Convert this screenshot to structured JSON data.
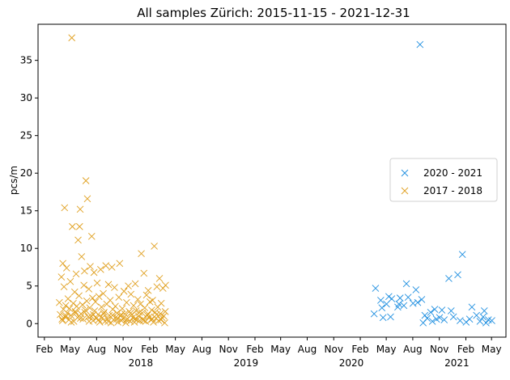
{
  "chart_data": {
    "type": "scatter",
    "title": "All samples Zürich: 2015-11-15 - 2021-12-31",
    "xlabel": "",
    "ylabel": "pcs/m",
    "ylim": [
      -1.8,
      39.8
    ],
    "xlim": [
      "2017-01-10",
      "2021-06-20"
    ],
    "grid": false,
    "legend_position": "center-right",
    "x_ticks": [
      {
        "date": "2017-02-01",
        "label": "Feb"
      },
      {
        "date": "2017-05-01",
        "label": "May"
      },
      {
        "date": "2017-08-01",
        "label": "Aug"
      },
      {
        "date": "2017-11-01",
        "label": "Nov"
      },
      {
        "date": "2018-02-01",
        "label": "Feb"
      },
      {
        "date": "2018-05-01",
        "label": "May"
      },
      {
        "date": "2018-08-01",
        "label": "Aug"
      },
      {
        "date": "2018-11-01",
        "label": "Nov"
      },
      {
        "date": "2019-02-01",
        "label": "Feb"
      },
      {
        "date": "2019-05-01",
        "label": "May"
      },
      {
        "date": "2019-08-01",
        "label": "Aug"
      },
      {
        "date": "2019-11-01",
        "label": "Nov"
      },
      {
        "date": "2020-02-01",
        "label": "Feb"
      },
      {
        "date": "2020-05-01",
        "label": "May"
      },
      {
        "date": "2020-08-01",
        "label": "Aug"
      },
      {
        "date": "2020-11-01",
        "label": "Nov"
      },
      {
        "date": "2021-02-01",
        "label": "Feb"
      },
      {
        "date": "2021-05-01",
        "label": "May"
      }
    ],
    "x_year_labels": [
      {
        "date": "2018-01-01",
        "label": "2018"
      },
      {
        "date": "2019-01-01",
        "label": "2019"
      },
      {
        "date": "2020-01-01",
        "label": "2020"
      },
      {
        "date": "2021-01-01",
        "label": "2021"
      }
    ],
    "y_ticks": [
      0,
      5,
      10,
      15,
      20,
      25,
      30,
      35
    ],
    "series": [
      {
        "name": "2020 - 2021",
        "color": "#1f8fe0",
        "marker": "x",
        "points": [
          {
            "x": "2020-03-20",
            "y": 1.3
          },
          {
            "x": "2020-03-25",
            "y": 4.7
          },
          {
            "x": "2020-04-12",
            "y": 3.1
          },
          {
            "x": "2020-04-16",
            "y": 2.1
          },
          {
            "x": "2020-04-20",
            "y": 0.8
          },
          {
            "x": "2020-05-02",
            "y": 2.6
          },
          {
            "x": "2020-05-10",
            "y": 3.6
          },
          {
            "x": "2020-05-16",
            "y": 0.9
          },
          {
            "x": "2020-05-20",
            "y": 3.3
          },
          {
            "x": "2020-06-10",
            "y": 2.2
          },
          {
            "x": "2020-06-14",
            "y": 2.6
          },
          {
            "x": "2020-06-18",
            "y": 3.4
          },
          {
            "x": "2020-07-01",
            "y": 2.4
          },
          {
            "x": "2020-07-10",
            "y": 5.3
          },
          {
            "x": "2020-07-16",
            "y": 3.5
          },
          {
            "x": "2020-08-02",
            "y": 2.7
          },
          {
            "x": "2020-08-12",
            "y": 4.5
          },
          {
            "x": "2020-08-18",
            "y": 2.8
          },
          {
            "x": "2020-08-26",
            "y": 37.1
          },
          {
            "x": "2020-09-01",
            "y": 3.2
          },
          {
            "x": "2020-09-06",
            "y": 0.1
          },
          {
            "x": "2020-09-12",
            "y": 1.1
          },
          {
            "x": "2020-09-20",
            "y": 0.7
          },
          {
            "x": "2020-10-02",
            "y": 1.5
          },
          {
            "x": "2020-10-08",
            "y": 0.3
          },
          {
            "x": "2020-10-16",
            "y": 1.9
          },
          {
            "x": "2020-10-22",
            "y": 0.6
          },
          {
            "x": "2020-11-02",
            "y": 0.8
          },
          {
            "x": "2020-11-10",
            "y": 1.8
          },
          {
            "x": "2020-11-18",
            "y": 0.5
          },
          {
            "x": "2020-12-04",
            "y": 6.0
          },
          {
            "x": "2020-12-12",
            "y": 1.7
          },
          {
            "x": "2020-12-20",
            "y": 0.9
          },
          {
            "x": "2021-01-04",
            "y": 6.5
          },
          {
            "x": "2021-01-12",
            "y": 0.4
          },
          {
            "x": "2021-01-20",
            "y": 9.2
          },
          {
            "x": "2021-02-02",
            "y": 0.2
          },
          {
            "x": "2021-02-14",
            "y": 0.6
          },
          {
            "x": "2021-02-22",
            "y": 2.2
          },
          {
            "x": "2021-03-10",
            "y": 1.1
          },
          {
            "x": "2021-03-22",
            "y": 0.3
          },
          {
            "x": "2021-04-02",
            "y": 0.9
          },
          {
            "x": "2021-04-06",
            "y": 1.7
          },
          {
            "x": "2021-04-12",
            "y": 0.1
          },
          {
            "x": "2021-04-20",
            "y": 0.5
          },
          {
            "x": "2021-05-02",
            "y": 0.4
          }
        ]
      },
      {
        "name": "2017 - 2018",
        "color": "#e0a020",
        "marker": "x",
        "points": [
          {
            "x": "2017-03-25",
            "y": 2.8
          },
          {
            "x": "2017-03-28",
            "y": 1.2
          },
          {
            "x": "2017-04-01",
            "y": 6.2
          },
          {
            "x": "2017-04-03",
            "y": 0.6
          },
          {
            "x": "2017-04-06",
            "y": 8.0
          },
          {
            "x": "2017-04-08",
            "y": 1.9
          },
          {
            "x": "2017-04-10",
            "y": 4.9
          },
          {
            "x": "2017-04-12",
            "y": 15.4
          },
          {
            "x": "2017-04-14",
            "y": 0.9
          },
          {
            "x": "2017-04-16",
            "y": 2.4
          },
          {
            "x": "2017-04-19",
            "y": 7.4
          },
          {
            "x": "2017-04-21",
            "y": 1.4
          },
          {
            "x": "2017-04-24",
            "y": 3.3
          },
          {
            "x": "2017-04-27",
            "y": 0.5
          },
          {
            "x": "2017-04-29",
            "y": 2.0
          },
          {
            "x": "2017-05-02",
            "y": 5.6
          },
          {
            "x": "2017-05-04",
            "y": 1.1
          },
          {
            "x": "2017-05-07",
            "y": 38.0
          },
          {
            "x": "2017-05-09",
            "y": 12.9
          },
          {
            "x": "2017-05-12",
            "y": 2.7
          },
          {
            "x": "2017-05-14",
            "y": 0.3
          },
          {
            "x": "2017-05-17",
            "y": 4.2
          },
          {
            "x": "2017-05-19",
            "y": 1.6
          },
          {
            "x": "2017-05-22",
            "y": 6.6
          },
          {
            "x": "2017-05-24",
            "y": 2.3
          },
          {
            "x": "2017-05-27",
            "y": 0.8
          },
          {
            "x": "2017-05-29",
            "y": 11.1
          },
          {
            "x": "2017-06-01",
            "y": 3.7
          },
          {
            "x": "2017-06-03",
            "y": 12.9
          },
          {
            "x": "2017-06-05",
            "y": 15.2
          },
          {
            "x": "2017-06-08",
            "y": 1.3
          },
          {
            "x": "2017-06-10",
            "y": 8.9
          },
          {
            "x": "2017-06-13",
            "y": 2.5
          },
          {
            "x": "2017-06-15",
            "y": 0.6
          },
          {
            "x": "2017-06-18",
            "y": 5.1
          },
          {
            "x": "2017-06-20",
            "y": 7.0
          },
          {
            "x": "2017-06-23",
            "y": 1.8
          },
          {
            "x": "2017-06-25",
            "y": 19.0
          },
          {
            "x": "2017-06-28",
            "y": 3.0
          },
          {
            "x": "2017-06-30",
            "y": 16.6
          },
          {
            "x": "2017-07-03",
            "y": 0.9
          },
          {
            "x": "2017-07-05",
            "y": 4.6
          },
          {
            "x": "2017-07-08",
            "y": 2.1
          },
          {
            "x": "2017-07-10",
            "y": 7.6
          },
          {
            "x": "2017-07-13",
            "y": 1.0
          },
          {
            "x": "2017-07-15",
            "y": 11.6
          },
          {
            "x": "2017-07-18",
            "y": 3.4
          },
          {
            "x": "2017-07-20",
            "y": 0.4
          },
          {
            "x": "2017-07-23",
            "y": 6.8
          },
          {
            "x": "2017-07-25",
            "y": 1.7
          },
          {
            "x": "2017-07-28",
            "y": 2.9
          },
          {
            "x": "2017-07-31",
            "y": 0.7
          },
          {
            "x": "2017-08-03",
            "y": 5.4
          },
          {
            "x": "2017-08-06",
            "y": 1.2
          },
          {
            "x": "2017-08-09",
            "y": 3.6
          },
          {
            "x": "2017-08-12",
            "y": 0.2
          },
          {
            "x": "2017-08-15",
            "y": 7.2
          },
          {
            "x": "2017-08-18",
            "y": 2.2
          },
          {
            "x": "2017-08-21",
            "y": 0.8
          },
          {
            "x": "2017-08-24",
            "y": 4.0
          },
          {
            "x": "2017-08-27",
            "y": 1.5
          },
          {
            "x": "2017-08-30",
            "y": 0.3
          },
          {
            "x": "2017-09-02",
            "y": 7.7
          },
          {
            "x": "2017-09-05",
            "y": 2.6
          },
          {
            "x": "2017-09-08",
            "y": 0.6
          },
          {
            "x": "2017-09-11",
            "y": 5.2
          },
          {
            "x": "2017-09-14",
            "y": 1.1
          },
          {
            "x": "2017-09-17",
            "y": 3.1
          },
          {
            "x": "2017-09-20",
            "y": 0.1
          },
          {
            "x": "2017-09-23",
            "y": 7.5
          },
          {
            "x": "2017-09-26",
            "y": 1.9
          },
          {
            "x": "2017-09-29",
            "y": 0.5
          },
          {
            "x": "2017-10-02",
            "y": 4.8
          },
          {
            "x": "2017-10-05",
            "y": 2.3
          },
          {
            "x": "2017-10-08",
            "y": 0.9
          },
          {
            "x": "2017-10-11",
            "y": 1.4
          },
          {
            "x": "2017-10-14",
            "y": 0.2
          },
          {
            "x": "2017-10-17",
            "y": 3.5
          },
          {
            "x": "2017-10-20",
            "y": 8.0
          },
          {
            "x": "2017-10-23",
            "y": 1.0
          },
          {
            "x": "2017-10-26",
            "y": 0.4
          },
          {
            "x": "2017-10-29",
            "y": 2.0
          },
          {
            "x": "2017-11-01",
            "y": 0.7
          },
          {
            "x": "2017-11-04",
            "y": 4.3
          },
          {
            "x": "2017-11-07",
            "y": 1.3
          },
          {
            "x": "2017-11-10",
            "y": 0.1
          },
          {
            "x": "2017-11-13",
            "y": 2.8
          },
          {
            "x": "2017-11-16",
            "y": 0.6
          },
          {
            "x": "2017-11-19",
            "y": 5.0
          },
          {
            "x": "2017-11-22",
            "y": 1.6
          },
          {
            "x": "2017-11-25",
            "y": 0.3
          },
          {
            "x": "2017-11-28",
            "y": 3.9
          },
          {
            "x": "2017-12-01",
            "y": 1.2
          },
          {
            "x": "2017-12-04",
            "y": 0.8
          },
          {
            "x": "2017-12-07",
            "y": 2.4
          },
          {
            "x": "2017-12-10",
            "y": 0.2
          },
          {
            "x": "2017-12-13",
            "y": 5.3
          },
          {
            "x": "2017-12-16",
            "y": 1.7
          },
          {
            "x": "2017-12-19",
            "y": 0.5
          },
          {
            "x": "2017-12-22",
            "y": 3.2
          },
          {
            "x": "2017-12-25",
            "y": 1.0
          },
          {
            "x": "2017-12-28",
            "y": 0.4
          },
          {
            "x": "2017-12-31",
            "y": 2.6
          },
          {
            "x": "2018-01-03",
            "y": 9.3
          },
          {
            "x": "2018-01-06",
            "y": 1.4
          },
          {
            "x": "2018-01-09",
            "y": 0.6
          },
          {
            "x": "2018-01-12",
            "y": 6.7
          },
          {
            "x": "2018-01-15",
            "y": 2.1
          },
          {
            "x": "2018-01-18",
            "y": 0.3
          },
          {
            "x": "2018-01-21",
            "y": 3.8
          },
          {
            "x": "2018-01-24",
            "y": 1.1
          },
          {
            "x": "2018-01-27",
            "y": 4.4
          },
          {
            "x": "2018-01-30",
            "y": 0.9
          },
          {
            "x": "2018-02-02",
            "y": 2.9
          },
          {
            "x": "2018-02-05",
            "y": 0.5
          },
          {
            "x": "2018-02-08",
            "y": 1.8
          },
          {
            "x": "2018-02-11",
            "y": 3.1
          },
          {
            "x": "2018-02-14",
            "y": 0.2
          },
          {
            "x": "2018-02-17",
            "y": 10.3
          },
          {
            "x": "2018-02-20",
            "y": 1.5
          },
          {
            "x": "2018-02-23",
            "y": 0.7
          },
          {
            "x": "2018-02-26",
            "y": 4.9
          },
          {
            "x": "2018-03-01",
            "y": 2.2
          },
          {
            "x": "2018-03-04",
            "y": 0.4
          },
          {
            "x": "2018-03-07",
            "y": 6.0
          },
          {
            "x": "2018-03-10",
            "y": 1.3
          },
          {
            "x": "2018-03-13",
            "y": 2.7
          },
          {
            "x": "2018-03-16",
            "y": 0.8
          },
          {
            "x": "2018-03-19",
            "y": 4.7
          },
          {
            "x": "2018-03-22",
            "y": 1.0
          },
          {
            "x": "2018-03-25",
            "y": 0.1
          },
          {
            "x": "2018-03-28",
            "y": 5.1
          },
          {
            "x": "2017-04-05",
            "y": 0.4
          },
          {
            "x": "2017-04-18",
            "y": 1.0
          },
          {
            "x": "2017-05-05",
            "y": 0.2
          },
          {
            "x": "2017-05-20",
            "y": 1.4
          },
          {
            "x": "2017-06-06",
            "y": 0.7
          },
          {
            "x": "2017-06-21",
            "y": 1.5
          },
          {
            "x": "2017-07-06",
            "y": 0.3
          },
          {
            "x": "2017-07-21",
            "y": 1.2
          },
          {
            "x": "2017-08-08",
            "y": 0.5
          },
          {
            "x": "2017-08-25",
            "y": 1.3
          },
          {
            "x": "2017-09-10",
            "y": 0.3
          },
          {
            "x": "2017-09-25",
            "y": 1.1
          },
          {
            "x": "2017-10-10",
            "y": 0.6
          },
          {
            "x": "2017-10-25",
            "y": 1.2
          },
          {
            "x": "2017-11-12",
            "y": 0.5
          },
          {
            "x": "2017-11-27",
            "y": 1.4
          },
          {
            "x": "2017-12-12",
            "y": 0.6
          },
          {
            "x": "2017-12-27",
            "y": 1.5
          },
          {
            "x": "2018-01-11",
            "y": 0.4
          },
          {
            "x": "2018-01-26",
            "y": 1.3
          },
          {
            "x": "2018-02-10",
            "y": 0.6
          },
          {
            "x": "2018-02-25",
            "y": 1.2
          },
          {
            "x": "2018-03-12",
            "y": 0.5
          },
          {
            "x": "2018-03-27",
            "y": 1.6
          }
        ]
      }
    ]
  }
}
